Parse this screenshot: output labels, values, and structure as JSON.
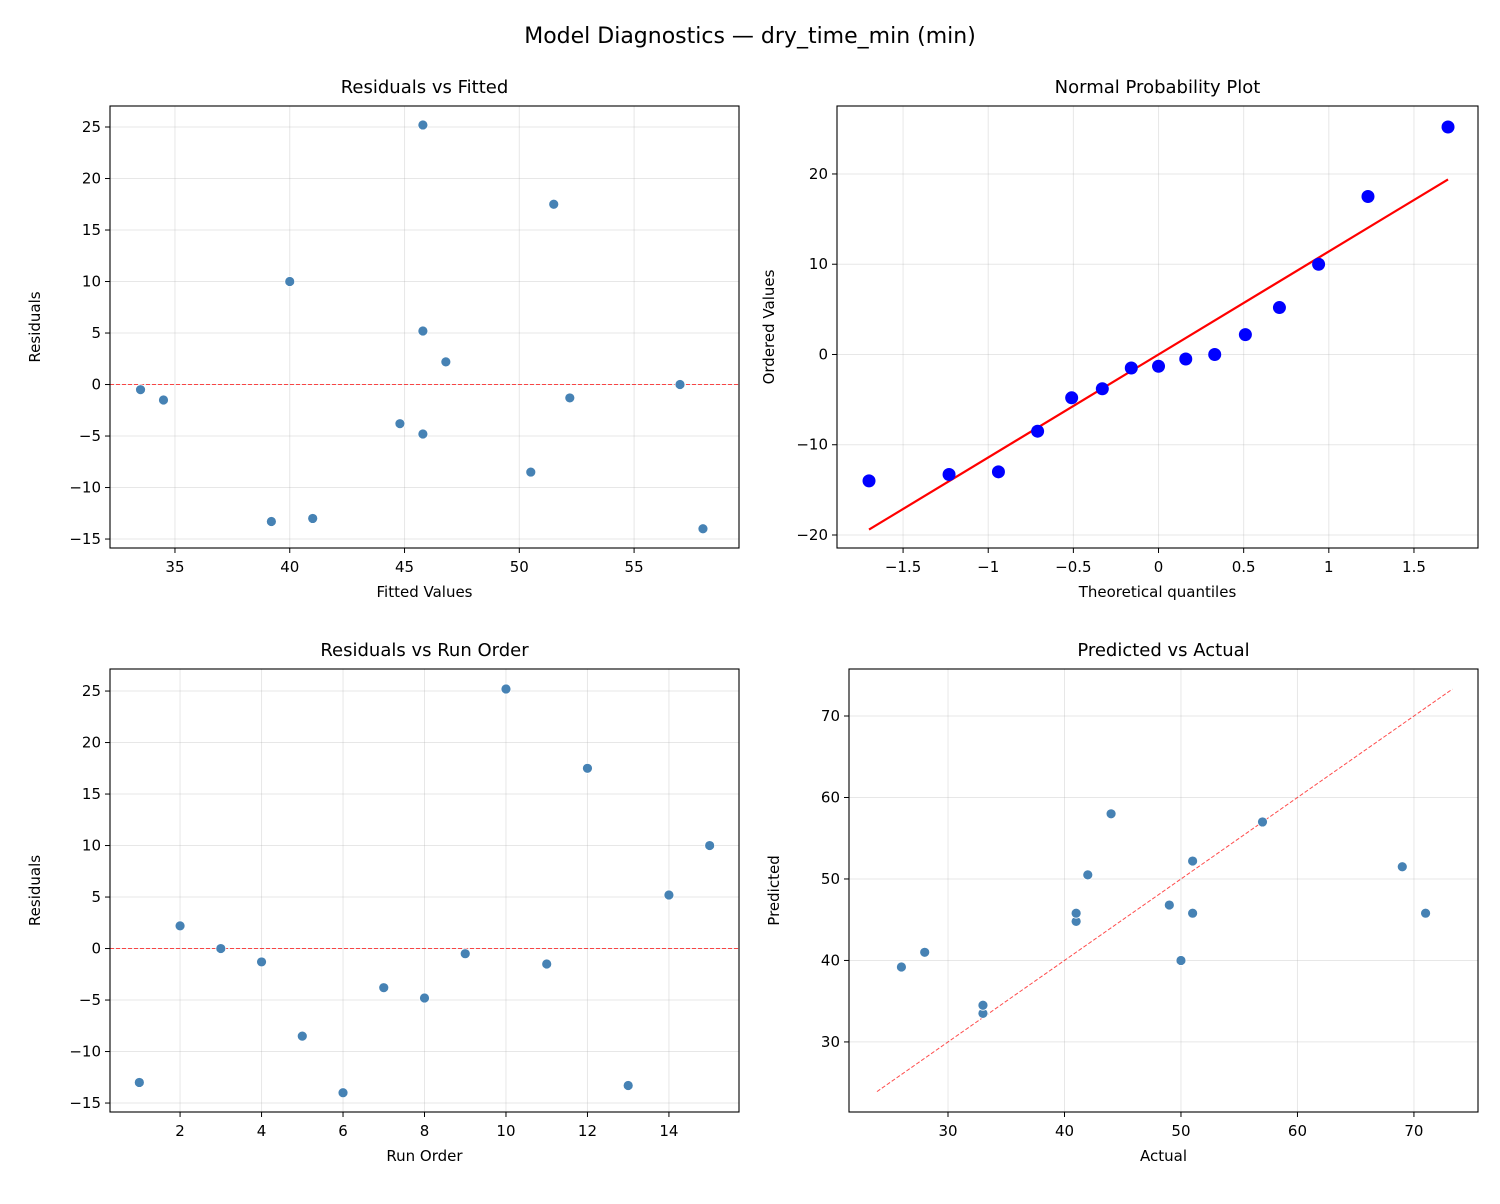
{
  "suptitle": "Model Diagnostics — dry_time_min (min)",
  "colors": {
    "points": "#4682b4",
    "qq_points": "#0000ff",
    "ref_line": "#ff0000"
  },
  "chart_data": [
    {
      "type": "scatter",
      "title": "Residuals vs Fitted",
      "xlabel": "Fitted Values",
      "ylabel": "Residuals",
      "xlim": [
        32.17,
        59.57
      ],
      "ylim": [
        -15.87,
        27.04
      ],
      "xticks": [
        35,
        40,
        45,
        50,
        55
      ],
      "yticks": [
        -15,
        -10,
        -5,
        0,
        5,
        10,
        15,
        20,
        25
      ],
      "grid": true,
      "x": [
        41.0,
        46.8,
        57.0,
        52.2,
        50.5,
        58.0,
        44.8,
        45.8,
        33.5,
        45.8,
        34.5,
        51.5,
        39.2,
        45.8,
        40.0
      ],
      "y": [
        -13.0,
        2.2,
        0.0,
        -1.3,
        -8.5,
        -14.0,
        -3.8,
        -4.8,
        -0.5,
        25.2,
        -1.5,
        17.5,
        -13.3,
        5.2,
        10.0
      ],
      "hline": 0
    },
    {
      "type": "scatter",
      "title": "Normal Probability Plot",
      "xlabel": "Theoretical quantiles",
      "ylabel": "Ordered Values",
      "xlim": [
        -1.888,
        1.876
      ],
      "ylim": [
        -21.44,
        27.53
      ],
      "xticks": [
        -1.5,
        -1.0,
        -0.5,
        0.0,
        0.5,
        1.0,
        1.5
      ],
      "yticks": [
        -20,
        -10,
        0,
        10,
        20
      ],
      "grid": true,
      "x": [
        -1.7,
        -1.23,
        -0.94,
        -0.71,
        -0.51,
        -0.33,
        -0.16,
        0.0,
        0.16,
        0.33,
        0.51,
        0.71,
        0.94,
        1.23,
        1.7
      ],
      "y": [
        -14.0,
        -13.3,
        -13.0,
        -8.5,
        -4.8,
        -3.8,
        -1.5,
        -1.3,
        -0.5,
        0.0,
        2.2,
        5.2,
        10.0,
        17.5,
        25.2
      ],
      "fit_line": {
        "x": [
          -1.7,
          1.7
        ],
        "y": [
          -19.4,
          19.4
        ]
      }
    },
    {
      "type": "scatter",
      "title": "Residuals vs Run Order",
      "xlabel": "Run Order",
      "ylabel": "Residuals",
      "xlim": [
        0.28,
        15.72
      ],
      "ylim": [
        -15.87,
        27.14
      ],
      "xticks": [
        2,
        4,
        6,
        8,
        10,
        12,
        14
      ],
      "yticks": [
        -15,
        -10,
        -5,
        0,
        5,
        10,
        15,
        20,
        25
      ],
      "grid": true,
      "x": [
        1,
        2,
        3,
        4,
        5,
        6,
        7,
        8,
        9,
        10,
        11,
        12,
        13,
        14,
        15
      ],
      "y": [
        -13.0,
        2.2,
        0.0,
        -1.3,
        -8.5,
        -14.0,
        -3.8,
        -4.8,
        -0.5,
        25.2,
        -1.5,
        17.5,
        -13.3,
        5.2,
        10.0
      ],
      "hline": 0
    },
    {
      "type": "scatter",
      "title": "Predicted vs Actual",
      "xlabel": "Actual",
      "ylabel": "Predicted",
      "xlim": [
        21.5,
        75.5
      ],
      "ylim": [
        21.4,
        75.77
      ],
      "xticks": [
        30,
        40,
        50,
        60,
        70
      ],
      "yticks": [
        30,
        40,
        50,
        60,
        70
      ],
      "grid": true,
      "x": [
        28,
        49,
        57,
        51,
        42,
        44,
        41,
        41,
        33,
        71,
        33,
        69,
        26,
        51,
        50
      ],
      "y": [
        41.0,
        46.8,
        57.0,
        52.2,
        50.5,
        58.0,
        44.8,
        45.8,
        33.5,
        45.8,
        34.5,
        51.5,
        39.2,
        45.8,
        40.0
      ],
      "ref_line": {
        "x": [
          23.9,
          73.3
        ],
        "y": [
          23.9,
          73.3
        ]
      }
    }
  ]
}
